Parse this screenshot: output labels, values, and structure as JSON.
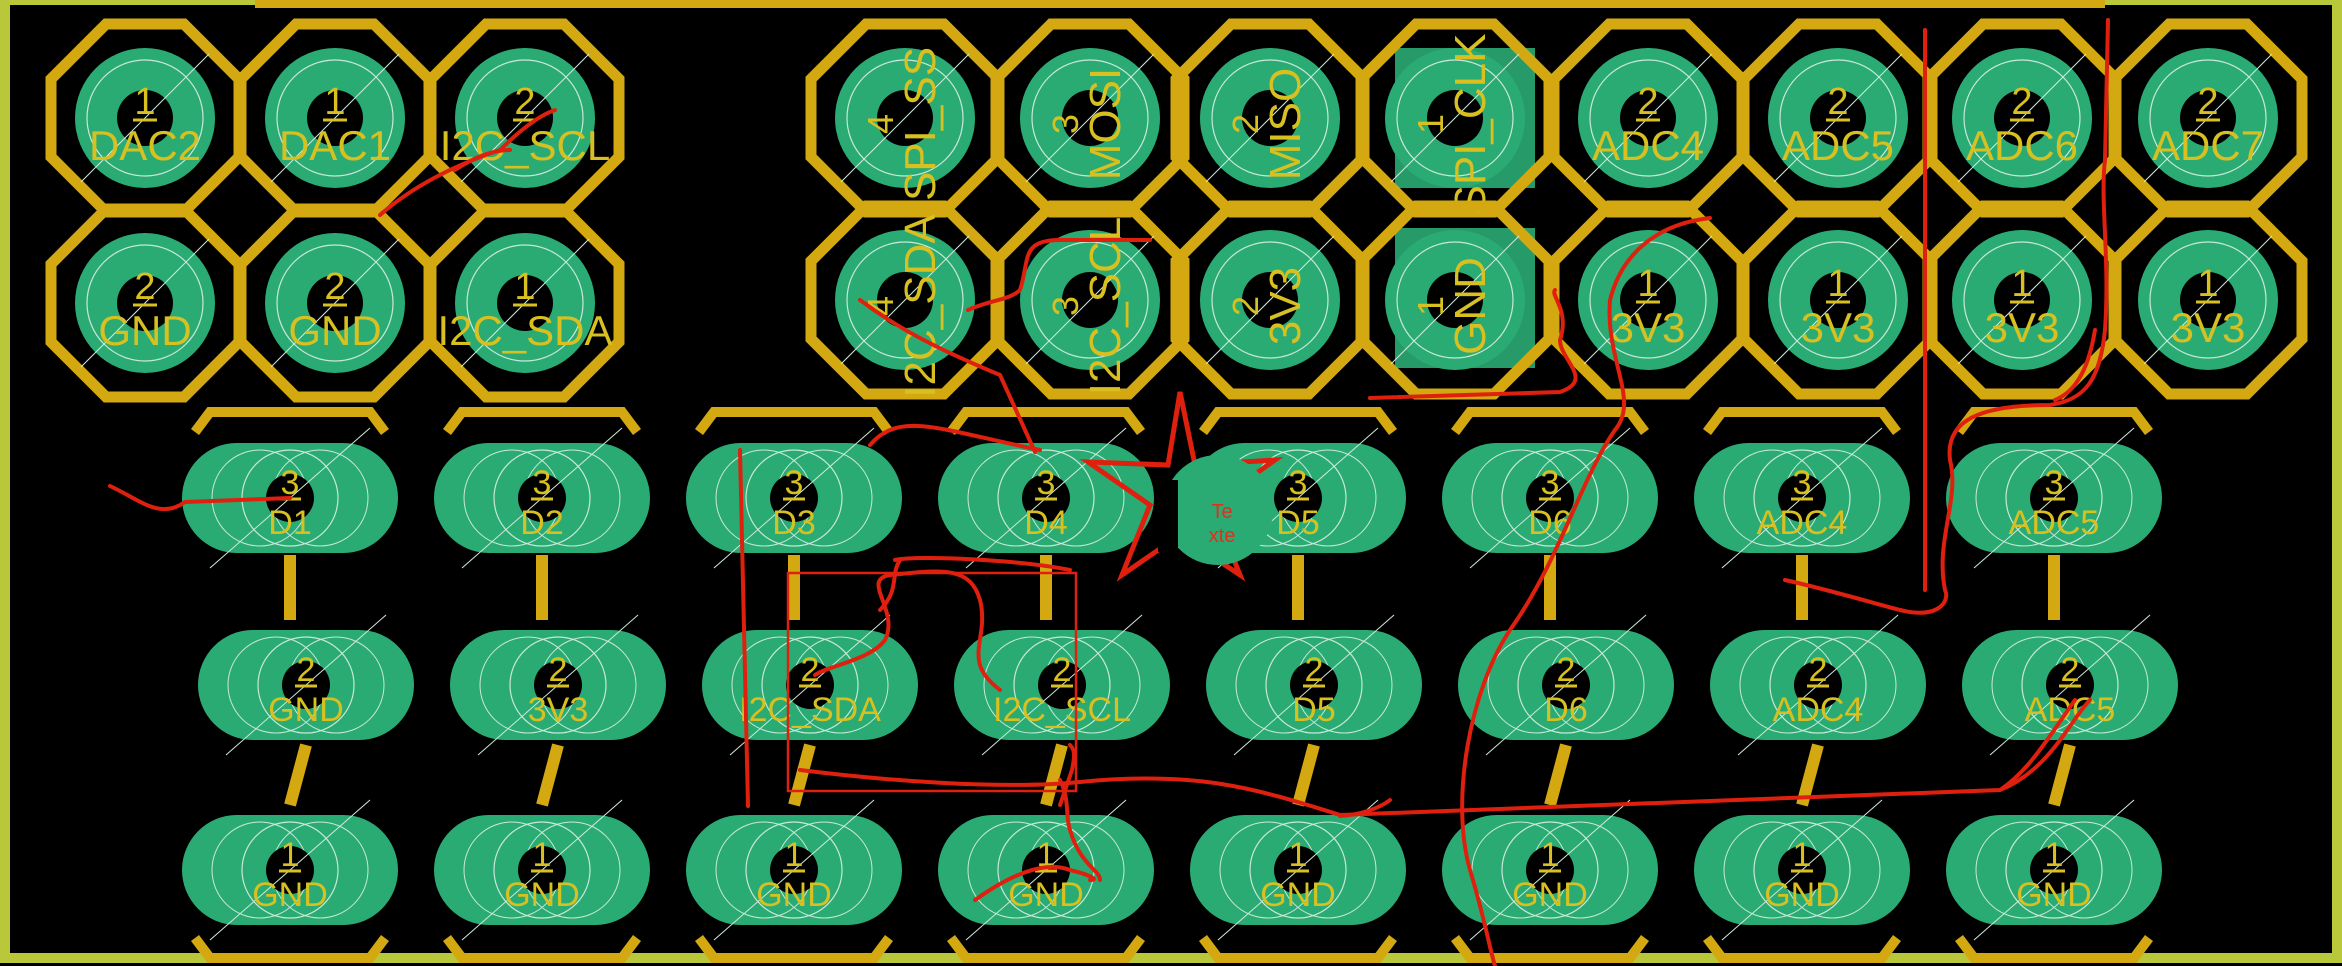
{
  "app": {
    "view": "pcb-layout"
  },
  "colors": {
    "background": "#000000",
    "board_edge": "#b8c83a",
    "copper_outline": "#d4a810",
    "pad_fill": "#2bab74",
    "drill": "#000000",
    "silk_label": "#d8c020",
    "ratsnest": "#e0200e",
    "selection_fill": "#2bab74"
  },
  "header_left": {
    "pads": [
      {
        "num": "1",
        "net": "DAC2"
      },
      {
        "num": "1",
        "net": "DAC1"
      },
      {
        "num": "2",
        "net": "I2C_SCL"
      },
      {
        "num": "2",
        "net": "GND"
      },
      {
        "num": "2",
        "net": "GND"
      },
      {
        "num": "1",
        "net": "I2C_SDA"
      }
    ]
  },
  "header_spi": {
    "pads": [
      {
        "num": "4",
        "net": "SPI_SS"
      },
      {
        "num": "3",
        "net": "MOSI"
      },
      {
        "num": "2",
        "net": "MISO"
      },
      {
        "num": "1",
        "net": "SPI_CLK"
      },
      {
        "num": "4",
        "net": "I2C_SDA"
      },
      {
        "num": "3",
        "net": "I2C_SCL"
      },
      {
        "num": "2",
        "net": "3V3"
      },
      {
        "num": "1",
        "net": "GND"
      }
    ]
  },
  "header_adc": {
    "pads": [
      {
        "num": "2",
        "net": "ADC4"
      },
      {
        "num": "2",
        "net": "ADC5"
      },
      {
        "num": "2",
        "net": "ADC6"
      },
      {
        "num": "2",
        "net": "ADC7"
      },
      {
        "num": "1",
        "net": "3V3"
      },
      {
        "num": "1",
        "net": "3V3"
      },
      {
        "num": "1",
        "net": "3V3"
      },
      {
        "num": "1",
        "net": "3V3"
      }
    ]
  },
  "row_pin3": [
    {
      "num": "3",
      "net": "D1"
    },
    {
      "num": "3",
      "net": "D2"
    },
    {
      "num": "3",
      "net": "D3"
    },
    {
      "num": "3",
      "net": "D4"
    },
    {
      "num": "3",
      "net": "D5"
    },
    {
      "num": "3",
      "net": "D6"
    },
    {
      "num": "3",
      "net": "ADC4"
    },
    {
      "num": "3",
      "net": "ADC5"
    }
  ],
  "row_pin2": [
    {
      "num": "2",
      "net": "GND"
    },
    {
      "num": "2",
      "net": "3V3"
    },
    {
      "num": "2",
      "net": "I2C_SDA"
    },
    {
      "num": "2",
      "net": "I2C_SCL"
    },
    {
      "num": "2",
      "net": "D5"
    },
    {
      "num": "2",
      "net": "D6"
    },
    {
      "num": "2",
      "net": "ADC4"
    },
    {
      "num": "2",
      "net": "ADC5"
    }
  ],
  "row_pin1": [
    {
      "num": "1",
      "net": "GND"
    },
    {
      "num": "1",
      "net": "GND"
    },
    {
      "num": "1",
      "net": "GND"
    },
    {
      "num": "1",
      "net": "GND"
    },
    {
      "num": "1",
      "net": "GND"
    },
    {
      "num": "1",
      "net": "GND"
    },
    {
      "num": "1",
      "net": "GND"
    },
    {
      "num": "1",
      "net": "GND"
    }
  ],
  "origin_marker": {
    "text_line1": "Te",
    "text_line2": "xte"
  }
}
